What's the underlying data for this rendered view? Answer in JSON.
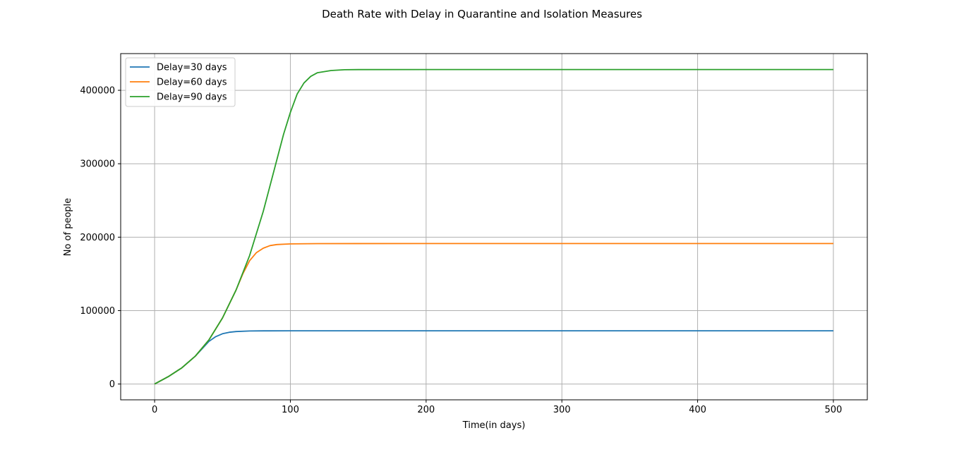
{
  "chart_data": {
    "type": "line",
    "title": "Death Rate with Delay in Quarantine and Isolation Measures",
    "xlabel": "Time(in days)",
    "ylabel": "No of people",
    "xlim": [
      -25,
      525
    ],
    "ylim": [
      -21500,
      450000
    ],
    "xticks": [
      0,
      100,
      200,
      300,
      400,
      500
    ],
    "yticks": [
      0,
      100000,
      200000,
      300000,
      400000
    ],
    "xtick_labels": [
      "0",
      "100",
      "200",
      "300",
      "400",
      "500"
    ],
    "ytick_labels": [
      "0",
      "100000",
      "200000",
      "300000",
      "400000"
    ],
    "grid": true,
    "legend_position": "top-left",
    "series": [
      {
        "name": "Delay=30 days",
        "color": "#1f77b4",
        "points": [
          [
            0,
            0
          ],
          [
            10,
            10000
          ],
          [
            20,
            22000
          ],
          [
            30,
            38000
          ],
          [
            35,
            48000
          ],
          [
            40,
            58000
          ],
          [
            45,
            64500
          ],
          [
            50,
            68500
          ],
          [
            55,
            70500
          ],
          [
            60,
            71500
          ],
          [
            70,
            72200
          ],
          [
            80,
            72400
          ],
          [
            100,
            72500
          ],
          [
            200,
            72500
          ],
          [
            300,
            72500
          ],
          [
            400,
            72500
          ],
          [
            500,
            72500
          ]
        ]
      },
      {
        "name": "Delay=60 days",
        "color": "#ff7f0e",
        "points": [
          [
            0,
            0
          ],
          [
            10,
            10000
          ],
          [
            20,
            22000
          ],
          [
            30,
            38000
          ],
          [
            40,
            60000
          ],
          [
            50,
            90000
          ],
          [
            60,
            128000
          ],
          [
            65,
            150000
          ],
          [
            70,
            168000
          ],
          [
            75,
            179000
          ],
          [
            80,
            185000
          ],
          [
            85,
            188500
          ],
          [
            90,
            190000
          ],
          [
            100,
            190800
          ],
          [
            120,
            191200
          ],
          [
            200,
            191300
          ],
          [
            300,
            191300
          ],
          [
            400,
            191300
          ],
          [
            500,
            191300
          ]
        ]
      },
      {
        "name": "Delay=90 days",
        "color": "#2ca02c",
        "points": [
          [
            0,
            0
          ],
          [
            10,
            10000
          ],
          [
            20,
            22000
          ],
          [
            30,
            38000
          ],
          [
            40,
            60000
          ],
          [
            50,
            90000
          ],
          [
            60,
            128000
          ],
          [
            70,
            175000
          ],
          [
            80,
            235000
          ],
          [
            90,
            305000
          ],
          [
            95,
            340000
          ],
          [
            100,
            370000
          ],
          [
            105,
            395000
          ],
          [
            110,
            410000
          ],
          [
            115,
            419000
          ],
          [
            120,
            424000
          ],
          [
            130,
            427000
          ],
          [
            140,
            428000
          ],
          [
            150,
            428200
          ],
          [
            200,
            428300
          ],
          [
            300,
            428300
          ],
          [
            400,
            428300
          ],
          [
            500,
            428300
          ]
        ]
      }
    ]
  }
}
